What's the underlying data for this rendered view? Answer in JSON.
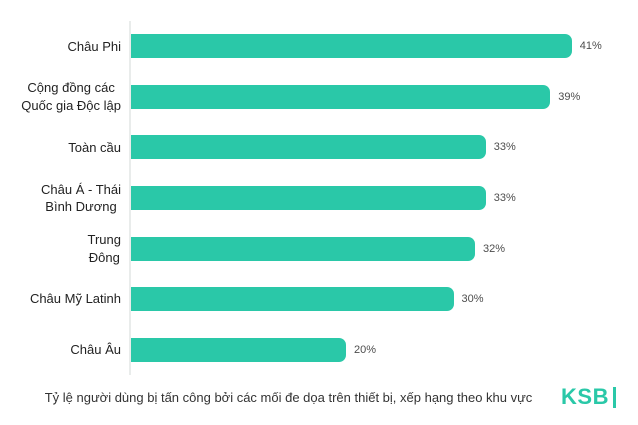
{
  "colors": {
    "accent": "#2ac8a8",
    "axis": "#e9eceb",
    "label": "#222222",
    "value": "#4d4d4d",
    "caption": "#333333",
    "background": "#ffffff"
  },
  "chart_data": {
    "type": "bar",
    "orientation": "horizontal",
    "title": "Tỷ lệ người dùng bị tấn công bởi các mối đe dọa trên thiết bị, xếp hạng theo khu vực",
    "categories": [
      "Châu Phi",
      "Cộng đồng các\nQuốc gia Độc lập",
      "Toàn cầu",
      "Châu Á - Thái\nBình Dương",
      "Trung\nĐông",
      "Châu Mỹ Latinh",
      "Châu Âu"
    ],
    "values": [
      41,
      39,
      33,
      33,
      32,
      30,
      20
    ],
    "value_labels": [
      "41%",
      "39%",
      "33%",
      "33%",
      "32%",
      "30%",
      "20%"
    ],
    "xlabel": "",
    "ylabel": "",
    "xlim": [
      0,
      44
    ],
    "grid": false,
    "legend": false,
    "bar_color": "#2ac8a8"
  },
  "footer": {
    "logo_text": "KSB"
  }
}
